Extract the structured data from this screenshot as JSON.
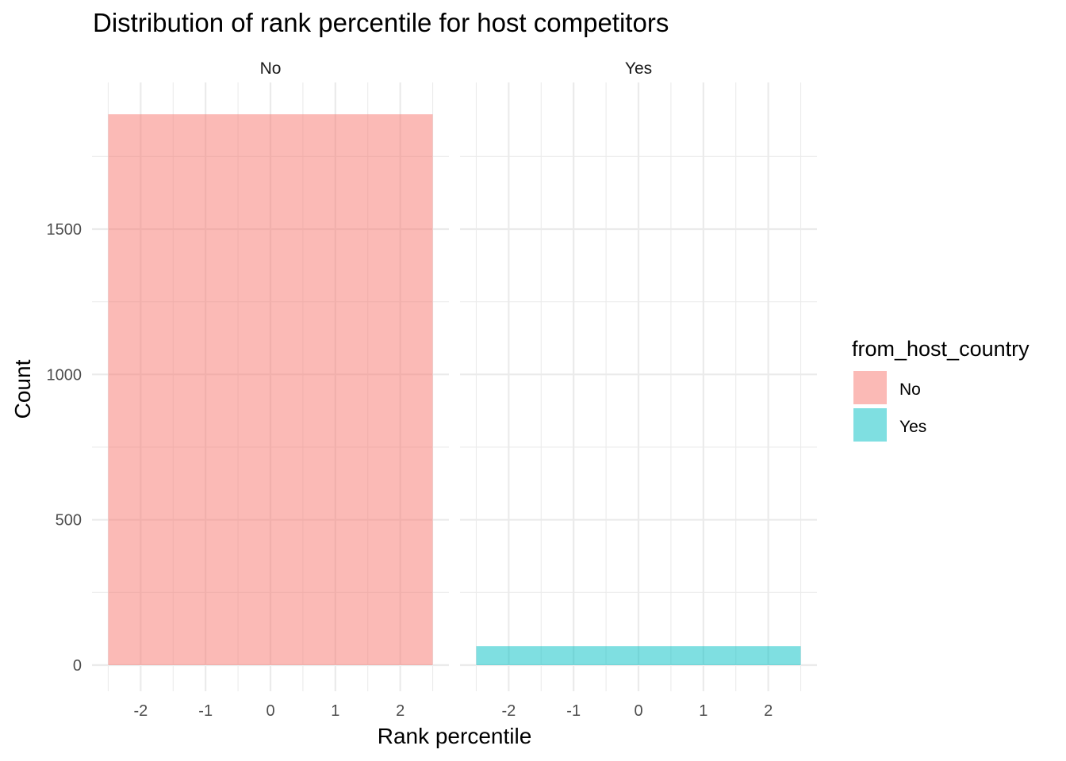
{
  "chart_data": {
    "type": "bar",
    "title": "Distribution of rank percentile for host competitors",
    "xlabel": "Rank percentile",
    "ylabel": "Count",
    "facet_variable": "from_host_country",
    "xlim": [
      -2.5,
      2.5
    ],
    "ylim": [
      0,
      1900
    ],
    "x_ticks": [
      -2,
      -1,
      0,
      1,
      2
    ],
    "y_ticks": [
      0,
      500,
      1000,
      1500
    ],
    "grid": true,
    "legend": {
      "title": "from_host_country",
      "placement": "right",
      "entries": [
        {
          "label": "No",
          "color": "#F8766D"
        },
        {
          "label": "Yes",
          "color": "#00BFC4"
        }
      ]
    },
    "panels": [
      {
        "facet": "No",
        "color": "#F8766D",
        "bars": [
          {
            "x_start": -2.5,
            "x_end": 2.5,
            "count": 1895
          }
        ]
      },
      {
        "facet": "Yes",
        "color": "#00BFC4",
        "bars": [
          {
            "x_start": -2.5,
            "x_end": 2.5,
            "count": 65
          }
        ]
      }
    ]
  }
}
